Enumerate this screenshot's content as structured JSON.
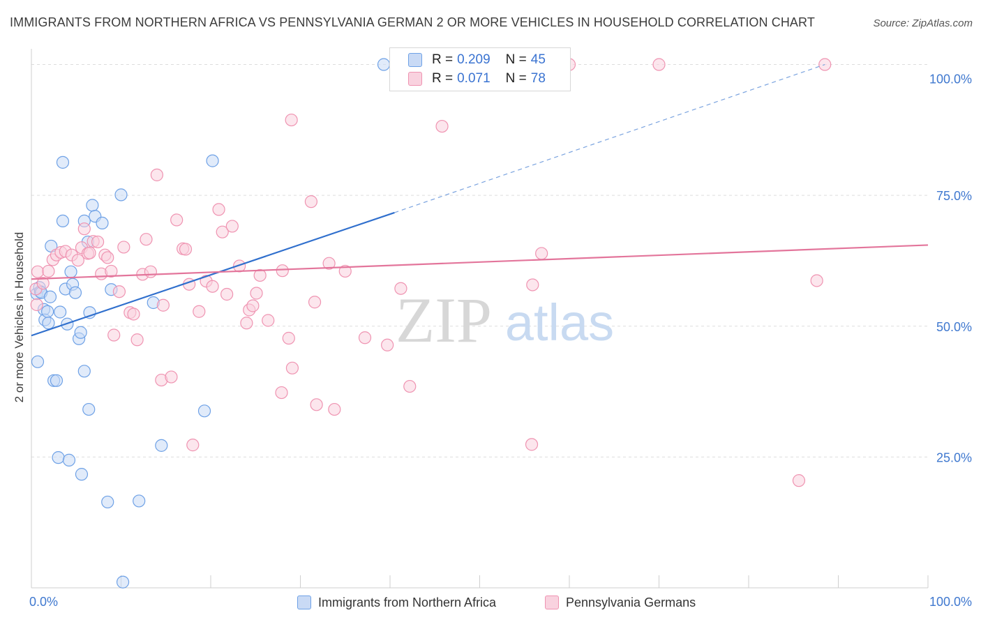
{
  "title": "IMMIGRANTS FROM NORTHERN AFRICA VS PENNSYLVANIA GERMAN 2 OR MORE VEHICLES IN HOUSEHOLD CORRELATION CHART",
  "source": "Source: ZipAtlas.com",
  "watermark": {
    "zip": "ZIP",
    "atlas": "atlas"
  },
  "colors": {
    "blue": "#6ea1e6",
    "blue_fill": "#c9daf5",
    "blue_line": "#2f6fcd",
    "pink": "#ef93b1",
    "pink_fill": "#f9d2df",
    "pink_line": "#e3759b",
    "tick_label": "#3f78cf",
    "grid": "#dddddd"
  },
  "legend": {
    "rows": [
      {
        "r_label": "R =",
        "r_value": "0.209",
        "n_label": "N =",
        "n_value": "45"
      },
      {
        "r_label": "R =",
        "r_value": "0.071",
        "n_label": "N =",
        "n_value": "78"
      }
    ]
  },
  "chart_data": {
    "type": "scatter",
    "title": "IMMIGRANTS FROM NORTHERN AFRICA VS PENNSYLVANIA GERMAN 2 OR MORE VEHICLES IN HOUSEHOLD CORRELATION CHART",
    "xlabel": "",
    "ylabel": "2 or more Vehicles in Household",
    "xlim": [
      0,
      100
    ],
    "ylim": [
      0,
      103
    ],
    "x_tick_labels": [
      "0.0%",
      "100.0%"
    ],
    "y_ticks": [
      25,
      50,
      75,
      100
    ],
    "y_tick_labels": [
      "25.0%",
      "50.0%",
      "75.0%",
      "100.0%"
    ],
    "grid": "horizontal dashed",
    "legend_position": "bottom",
    "series": [
      {
        "name": "Immigrants from Northern Africa",
        "color": "#6ea1e6",
        "R": 0.209,
        "N": 45,
        "trend": {
          "x": [
            0,
            40.5
          ],
          "y": [
            48.2,
            71.7
          ],
          "dashed_to": [
            88.5,
            100
          ]
        },
        "points": [
          [
            0.6,
            56.2
          ],
          [
            0.7,
            43.2
          ],
          [
            0.9,
            57.4
          ],
          [
            1.0,
            56.6
          ],
          [
            1.1,
            56.4
          ],
          [
            1.4,
            53.2
          ],
          [
            1.5,
            51.2
          ],
          [
            1.8,
            52.8
          ],
          [
            1.9,
            50.6
          ],
          [
            2.1,
            55.6
          ],
          [
            2.2,
            65.3
          ],
          [
            2.5,
            39.6
          ],
          [
            2.8,
            39.6
          ],
          [
            3.0,
            24.9
          ],
          [
            3.2,
            52.7
          ],
          [
            3.5,
            81.3
          ],
          [
            3.5,
            70.1
          ],
          [
            3.8,
            57.1
          ],
          [
            4.0,
            50.4
          ],
          [
            4.2,
            24.4
          ],
          [
            4.4,
            60.4
          ],
          [
            4.6,
            58.0
          ],
          [
            4.9,
            56.4
          ],
          [
            5.3,
            47.6
          ],
          [
            5.5,
            48.8
          ],
          [
            5.6,
            21.7
          ],
          [
            5.9,
            70.1
          ],
          [
            5.9,
            41.4
          ],
          [
            6.3,
            66.1
          ],
          [
            6.4,
            34.1
          ],
          [
            6.5,
            52.6
          ],
          [
            6.8,
            73.1
          ],
          [
            7.1,
            71.0
          ],
          [
            7.9,
            69.7
          ],
          [
            8.5,
            16.4
          ],
          [
            8.9,
            57.0
          ],
          [
            10.0,
            75.1
          ],
          [
            10.2,
            1.1
          ],
          [
            12.0,
            16.6
          ],
          [
            13.6,
            54.5
          ],
          [
            14.5,
            27.2
          ],
          [
            19.3,
            33.8
          ],
          [
            20.2,
            81.6
          ],
          [
            39.3,
            100.0
          ],
          [
            43.1,
            100.0
          ]
        ]
      },
      {
        "name": "Pennsylvania Germans",
        "color": "#ef93b1",
        "R": 0.071,
        "N": 78,
        "trend": {
          "x": [
            0,
            100
          ],
          "y": [
            59.0,
            65.5
          ]
        },
        "points": [
          [
            0.5,
            57.1
          ],
          [
            0.6,
            54.1
          ],
          [
            0.7,
            60.4
          ],
          [
            1.3,
            58.2
          ],
          [
            1.9,
            60.5
          ],
          [
            2.4,
            62.7
          ],
          [
            2.8,
            63.6
          ],
          [
            3.3,
            64.1
          ],
          [
            3.8,
            64.3
          ],
          [
            4.5,
            63.6
          ],
          [
            5.2,
            62.6
          ],
          [
            5.6,
            65.0
          ],
          [
            5.9,
            68.6
          ],
          [
            6.3,
            63.9
          ],
          [
            6.5,
            64.0
          ],
          [
            6.9,
            66.2
          ],
          [
            7.4,
            66.1
          ],
          [
            7.8,
            60.0
          ],
          [
            8.2,
            63.6
          ],
          [
            8.5,
            63.1
          ],
          [
            8.9,
            60.5
          ],
          [
            9.2,
            48.3
          ],
          [
            9.8,
            56.6
          ],
          [
            10.3,
            65.1
          ],
          [
            11.0,
            52.6
          ],
          [
            11.4,
            52.3
          ],
          [
            11.8,
            47.4
          ],
          [
            12.4,
            59.9
          ],
          [
            12.8,
            66.6
          ],
          [
            13.3,
            60.4
          ],
          [
            14.0,
            78.9
          ],
          [
            14.5,
            39.7
          ],
          [
            14.7,
            54.0
          ],
          [
            15.6,
            40.3
          ],
          [
            16.2,
            70.3
          ],
          [
            16.9,
            64.8
          ],
          [
            17.2,
            64.7
          ],
          [
            17.6,
            58.0
          ],
          [
            18.0,
            27.3
          ],
          [
            18.7,
            52.8
          ],
          [
            19.5,
            58.6
          ],
          [
            20.2,
            57.6
          ],
          [
            20.9,
            72.3
          ],
          [
            21.3,
            68.0
          ],
          [
            21.8,
            56.1
          ],
          [
            22.4,
            69.1
          ],
          [
            23.2,
            61.5
          ],
          [
            24.0,
            50.6
          ],
          [
            24.3,
            53.1
          ],
          [
            24.7,
            53.9
          ],
          [
            25.1,
            56.3
          ],
          [
            25.5,
            59.7
          ],
          [
            26.4,
            51.1
          ],
          [
            27.9,
            37.3
          ],
          [
            28.0,
            60.6
          ],
          [
            28.7,
            47.7
          ],
          [
            29.0,
            89.4
          ],
          [
            29.1,
            42.0
          ],
          [
            31.2,
            73.8
          ],
          [
            31.6,
            54.6
          ],
          [
            31.8,
            35.0
          ],
          [
            33.2,
            62.0
          ],
          [
            33.8,
            34.1
          ],
          [
            35.0,
            60.5
          ],
          [
            37.2,
            47.8
          ],
          [
            39.7,
            46.4
          ],
          [
            41.2,
            57.2
          ],
          [
            42.2,
            38.5
          ],
          [
            45.8,
            88.2
          ],
          [
            46.9,
            100.0
          ],
          [
            55.8,
            27.4
          ],
          [
            55.9,
            57.9
          ],
          [
            56.9,
            63.9
          ],
          [
            60.0,
            100.0
          ],
          [
            70.0,
            100.0
          ],
          [
            85.6,
            20.5
          ],
          [
            87.6,
            58.7
          ],
          [
            88.5,
            100.0
          ]
        ]
      }
    ]
  }
}
